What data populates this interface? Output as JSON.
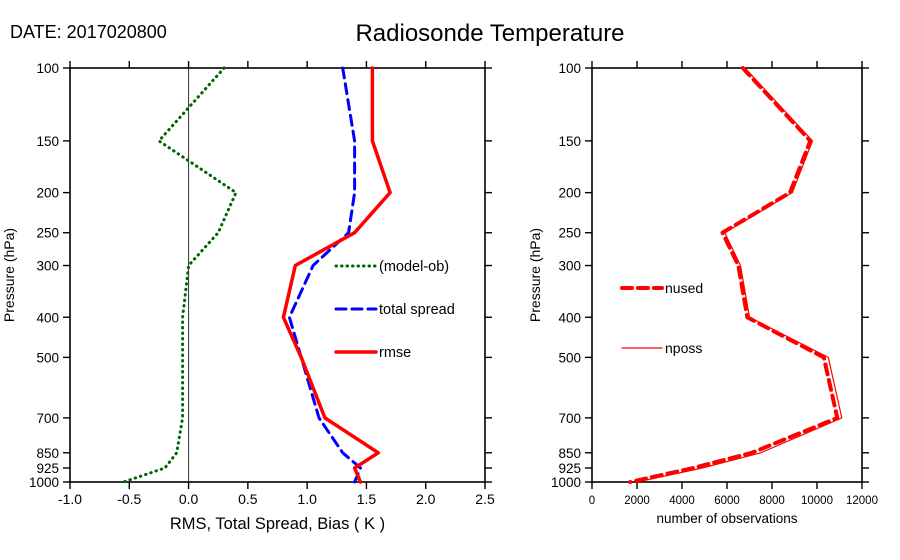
{
  "header": {
    "date": "DATE: 2017020800",
    "title": "Radiosonde Temperature"
  },
  "chart_data": [
    {
      "id": "stats",
      "type": "line",
      "title": "",
      "xlabel": "RMS, Total Spread, Bias ( K )",
      "ylabel": "Pressure (hPa)",
      "xlim": [
        -1.0,
        2.5
      ],
      "ylim": [
        100,
        1000
      ],
      "yscale": "log-inverted",
      "grid": false,
      "zero_line": 0.0,
      "legend_position": "inside-middle-right",
      "xticks": [
        -1.0,
        -0.5,
        0.0,
        0.5,
        1.0,
        1.5,
        2.0,
        2.5
      ],
      "xtick_labels": [
        "-1.0",
        "-0.5",
        "0.0",
        "0.5",
        "1.0",
        "1.5",
        "2.0",
        "2.5"
      ],
      "yticks": [
        100,
        150,
        200,
        250,
        300,
        400,
        500,
        700,
        850,
        925,
        1000
      ],
      "pressure_levels": [
        100,
        150,
        200,
        250,
        300,
        400,
        500,
        700,
        850,
        925,
        1000
      ],
      "series": [
        {
          "key": "bias",
          "name": "(model-ob)",
          "color": "#006400",
          "style": "dotted",
          "width": 3,
          "values": [
            0.3,
            -0.25,
            0.4,
            0.25,
            0.0,
            -0.05,
            -0.05,
            -0.05,
            -0.1,
            -0.2,
            -0.55
          ]
        },
        {
          "key": "total-spread",
          "name": "total spread",
          "color": "#0000ff",
          "style": "dashed",
          "width": 3,
          "values": [
            1.3,
            1.4,
            1.4,
            1.35,
            1.05,
            0.85,
            0.95,
            1.1,
            1.3,
            1.45,
            1.4
          ]
        },
        {
          "key": "rmse",
          "name": "rmse",
          "color": "#ff0000",
          "style": "solid",
          "width": 3.5,
          "values": [
            1.55,
            1.55,
            1.7,
            1.4,
            0.9,
            0.8,
            0.95,
            1.15,
            1.6,
            1.4,
            1.45
          ]
        }
      ]
    },
    {
      "id": "counts",
      "type": "line",
      "title": "",
      "xlabel": "number of observations",
      "ylabel": "Pressure (hPa)",
      "xlim": [
        0,
        12000
      ],
      "ylim": [
        100,
        1000
      ],
      "yscale": "log-inverted",
      "grid": false,
      "zero_line": null,
      "legend_position": "inside-left",
      "xticks": [
        0,
        2000,
        4000,
        6000,
        8000,
        10000,
        12000
      ],
      "xtick_labels": [
        "0",
        "2000",
        "4000",
        "6000",
        "8000",
        "10000",
        "12000"
      ],
      "yticks": [
        100,
        150,
        200,
        250,
        300,
        400,
        500,
        700,
        850,
        925,
        1000
      ],
      "pressure_levels": [
        100,
        150,
        200,
        250,
        300,
        400,
        500,
        700,
        850,
        925,
        1000
      ],
      "series": [
        {
          "key": "nused",
          "name": "nused",
          "color": "#ff0000",
          "style": "dashed",
          "width": 4,
          "values": [
            6700,
            9700,
            8800,
            5800,
            6500,
            6900,
            10300,
            10900,
            7100,
            4500,
            1700
          ]
        },
        {
          "key": "nposs",
          "name": "nposs",
          "color": "#ff0000",
          "style": "solid",
          "width": 1.2,
          "values": [
            6800,
            9800,
            8900,
            5900,
            6600,
            7000,
            10500,
            11100,
            7500,
            4900,
            2000
          ]
        }
      ]
    }
  ]
}
